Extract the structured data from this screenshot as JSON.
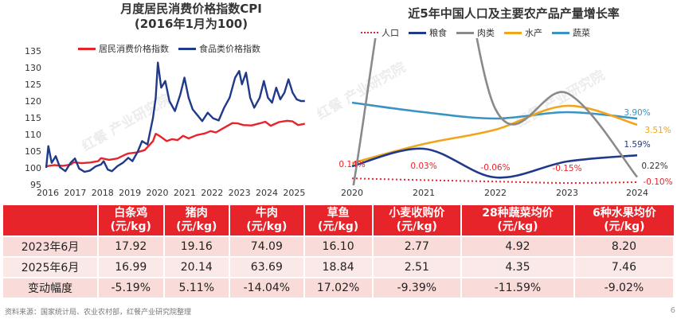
{
  "chart_data": [
    {
      "type": "line",
      "title": "月度居民消费价格指数CPI",
      "subtitle": "(2016年1月为100)",
      "ylim": [
        95,
        135
      ],
      "yticks": [
        95,
        100,
        105,
        110,
        115,
        120,
        125,
        130,
        135
      ],
      "xticks": [
        "2016",
        "2017",
        "2018",
        "2019",
        "2020",
        "2021",
        "2022",
        "2023",
        "2024",
        "2025"
      ],
      "x_range": [
        2016.0,
        2025.6
      ],
      "legend_position": "top",
      "series": [
        {
          "name": "居民消费价格指数",
          "color": "#e8242b",
          "points": [
            [
              2016.0,
              100.5
            ],
            [
              2016.3,
              100.8
            ],
            [
              2016.6,
              100.6
            ],
            [
              2016.9,
              101.0
            ],
            [
              2017.0,
              101.7
            ],
            [
              2017.3,
              101.4
            ],
            [
              2017.6,
              101.6
            ],
            [
              2017.9,
              102.0
            ],
            [
              2018.0,
              102.9
            ],
            [
              2018.3,
              102.4
            ],
            [
              2018.6,
              102.8
            ],
            [
              2018.9,
              104.0
            ],
            [
              2019.0,
              104.3
            ],
            [
              2019.3,
              104.6
            ],
            [
              2019.6,
              105.3
            ],
            [
              2019.9,
              108.0
            ],
            [
              2020.0,
              110.2
            ],
            [
              2020.15,
              109.5
            ],
            [
              2020.4,
              108.0
            ],
            [
              2020.6,
              108.6
            ],
            [
              2020.8,
              108.3
            ],
            [
              2021.0,
              109.6
            ],
            [
              2021.2,
              108.8
            ],
            [
              2021.5,
              109.8
            ],
            [
              2021.8,
              110.3
            ],
            [
              2022.0,
              111.0
            ],
            [
              2022.2,
              110.6
            ],
            [
              2022.5,
              112.0
            ],
            [
              2022.8,
              113.4
            ],
            [
              2023.0,
              113.3
            ],
            [
              2023.2,
              112.8
            ],
            [
              2023.5,
              112.7
            ],
            [
              2023.8,
              113.3
            ],
            [
              2024.0,
              113.8
            ],
            [
              2024.2,
              112.6
            ],
            [
              2024.5,
              113.7
            ],
            [
              2024.8,
              114.1
            ],
            [
              2025.0,
              113.9
            ],
            [
              2025.2,
              112.8
            ],
            [
              2025.45,
              113.2
            ]
          ]
        },
        {
          "name": "食品类价格指数",
          "color": "#1f3a8a",
          "points": [
            [
              2016.0,
              100.0
            ],
            [
              2016.08,
              106.5
            ],
            [
              2016.2,
              101.5
            ],
            [
              2016.35,
              103.5
            ],
            [
              2016.5,
              100.2
            ],
            [
              2016.7,
              99.0
            ],
            [
              2016.9,
              101.6
            ],
            [
              2017.05,
              102.8
            ],
            [
              2017.2,
              99.8
            ],
            [
              2017.4,
              98.8
            ],
            [
              2017.6,
              99.2
            ],
            [
              2017.8,
              100.4
            ],
            [
              2018.0,
              101.0
            ],
            [
              2018.1,
              102.0
            ],
            [
              2018.25,
              99.5
            ],
            [
              2018.4,
              99.0
            ],
            [
              2018.6,
              100.5
            ],
            [
              2018.8,
              101.5
            ],
            [
              2019.0,
              103.0
            ],
            [
              2019.15,
              102.0
            ],
            [
              2019.35,
              105.0
            ],
            [
              2019.5,
              108.0
            ],
            [
              2019.7,
              107.0
            ],
            [
              2019.9,
              115.0
            ],
            [
              2020.0,
              121.0
            ],
            [
              2020.08,
              131.5
            ],
            [
              2020.2,
              124.0
            ],
            [
              2020.35,
              126.0
            ],
            [
              2020.5,
              120.0
            ],
            [
              2020.7,
              117.0
            ],
            [
              2020.9,
              122.0
            ],
            [
              2021.05,
              127.0
            ],
            [
              2021.2,
              121.0
            ],
            [
              2021.35,
              117.5
            ],
            [
              2021.5,
              116.0
            ],
            [
              2021.7,
              114.0
            ],
            [
              2021.9,
              116.5
            ],
            [
              2022.1,
              114.8
            ],
            [
              2022.3,
              114.2
            ],
            [
              2022.5,
              118.0
            ],
            [
              2022.7,
              121.0
            ],
            [
              2022.9,
              127.0
            ],
            [
              2023.05,
              129.0
            ],
            [
              2023.15,
              125.0
            ],
            [
              2023.3,
              128.5
            ],
            [
              2023.45,
              121.0
            ],
            [
              2023.6,
              118.0
            ],
            [
              2023.8,
              121.0
            ],
            [
              2023.95,
              126.0
            ],
            [
              2024.1,
              121.0
            ],
            [
              2024.25,
              119.5
            ],
            [
              2024.4,
              124.0
            ],
            [
              2024.55,
              120.5
            ],
            [
              2024.7,
              122.5
            ],
            [
              2024.85,
              126.5
            ],
            [
              2025.0,
              122.5
            ],
            [
              2025.15,
              120.5
            ],
            [
              2025.3,
              120.0
            ],
            [
              2025.45,
              120.0
            ]
          ]
        }
      ]
    },
    {
      "type": "line",
      "title": "近5年中国人口及主要农产品产量增长率",
      "x": [
        "2020",
        "2021",
        "2022",
        "2023",
        "2024"
      ],
      "legend_position": "top",
      "series": [
        {
          "name": "人口",
          "color": "#e8242b",
          "dotted": true,
          "values": [
            0.14,
            0.03,
            -0.06,
            -0.15,
            -0.1
          ],
          "labels": [
            "0.14%",
            "0.03%",
            "-0.06%",
            "-0.15%",
            "-0.10%"
          ]
        },
        {
          "name": "粮食",
          "color": "#1f3a8a",
          "values": [
            0.9,
            2.0,
            0.2,
            1.2,
            1.59
          ],
          "end_label": "1.59%"
        },
        {
          "name": "肉类",
          "color": "#8a8a8a",
          "values": [
            -0.8,
            23.0,
            4.5,
            5.5,
            0.22
          ],
          "end_label": "0.22%"
        },
        {
          "name": "水产",
          "color": "#f0a51a",
          "values": [
            1.1,
            2.3,
            3.2,
            4.7,
            3.51
          ],
          "end_label": "3.51%"
        },
        {
          "name": "蔬菜",
          "color": "#3a93c3",
          "values": [
            4.9,
            4.3,
            3.9,
            4.3,
            3.9
          ],
          "end_label": "3.90%"
        }
      ]
    }
  ],
  "table": {
    "headers": [
      "白条鸡\n(元/kg)",
      "猪肉\n(元/kg)",
      "牛肉\n(元/kg)",
      "草鱼\n(元/kg)",
      "小麦收购价\n(元/kg)",
      "28种蔬菜均价\n(元/kg)",
      "6种水果均价\n(元/kg)"
    ],
    "rows": [
      {
        "label": "2023年6月",
        "cells": [
          "17.92",
          "19.16",
          "74.09",
          "16.10",
          "2.77",
          "4.92",
          "8.20"
        ]
      },
      {
        "label": "2025年6月",
        "cells": [
          "16.99",
          "20.14",
          "63.69",
          "18.84",
          "2.51",
          "4.35",
          "7.46"
        ]
      },
      {
        "label": "变动幅度",
        "cells": [
          "-5.19%",
          "5.11%",
          "-14.04%",
          "17.02%",
          "-9.39%",
          "-11.59%",
          "-9.02%"
        ]
      }
    ]
  },
  "source": "资料来源：国家统计局、农业农村部，红餐产业研究院整理",
  "page_number": "6",
  "watermark": "红餐 产业研究院"
}
